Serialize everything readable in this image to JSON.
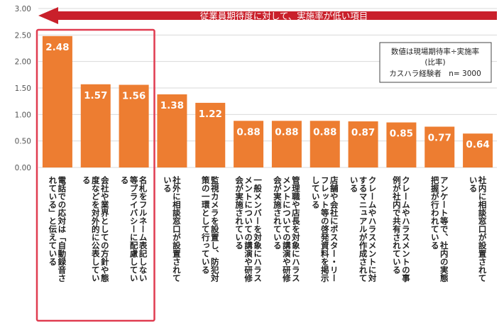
{
  "colors": {
    "bar": "#ed7d31",
    "banner": "#c9202b",
    "highlight": "#e03c50",
    "grid": "#d9d9d9"
  },
  "banner": {
    "text": "従業員期待度に対して、実施率が低い項目"
  },
  "note": {
    "line1": "数値は現場期待率÷実施率",
    "line2": "(比率)",
    "line3": "カスハラ経験者　n= 3000"
  },
  "chart_data": {
    "type": "bar",
    "ylim": [
      0,
      3
    ],
    "yticks": [
      "0.00",
      "0.50",
      "1.00",
      "1.50",
      "2.00",
      "2.50",
      "3.00"
    ],
    "grid": true,
    "values": [
      2.48,
      1.57,
      1.56,
      1.38,
      1.22,
      0.88,
      0.88,
      0.88,
      0.87,
      0.85,
      0.77,
      0.64
    ],
    "value_labels": [
      "2.48",
      "1.57",
      "1.56",
      "1.38",
      "1.22",
      "0.88",
      "0.88",
      "0.88",
      "0.87",
      "0.85",
      "0.77",
      "0.64"
    ],
    "categories": [
      [
        "電話での応対は「自動録音さ",
        "れている」と伝えている"
      ],
      [
        "会社や業界としての方針や態",
        "度などを対外的に公表してい",
        "る"
      ],
      [
        "名札をフルネーム表記しない",
        "等プライバシーに配慮してい",
        "る"
      ],
      [
        "社外に相談窓口が設置されて",
        "いる"
      ],
      [
        "監視カメラを設置し、防犯対",
        "策の一環として行っている"
      ],
      [
        "一般メンバーを対象にハラス",
        "メントについての講演や研修",
        "会が実施されている"
      ],
      [
        "管理職や店長を対象にハラス",
        "メントについての講演や研修",
        "会が実施されている"
      ],
      [
        "店舗や会社にポスター・リー",
        "フレット等の啓発資料を掲示",
        "している"
      ],
      [
        "クレームやハラスメントに対",
        "するマニュアルが作成されて",
        "いる"
      ],
      [
        "クレームやハラスメントの事",
        "例が社内で共有されている"
      ],
      [
        "アンケート等で、社内の実態",
        "把握が行われている"
      ],
      [
        "社内に相談窓口が設置されて",
        "いる"
      ]
    ],
    "highlighted": [
      0,
      1,
      2
    ]
  }
}
